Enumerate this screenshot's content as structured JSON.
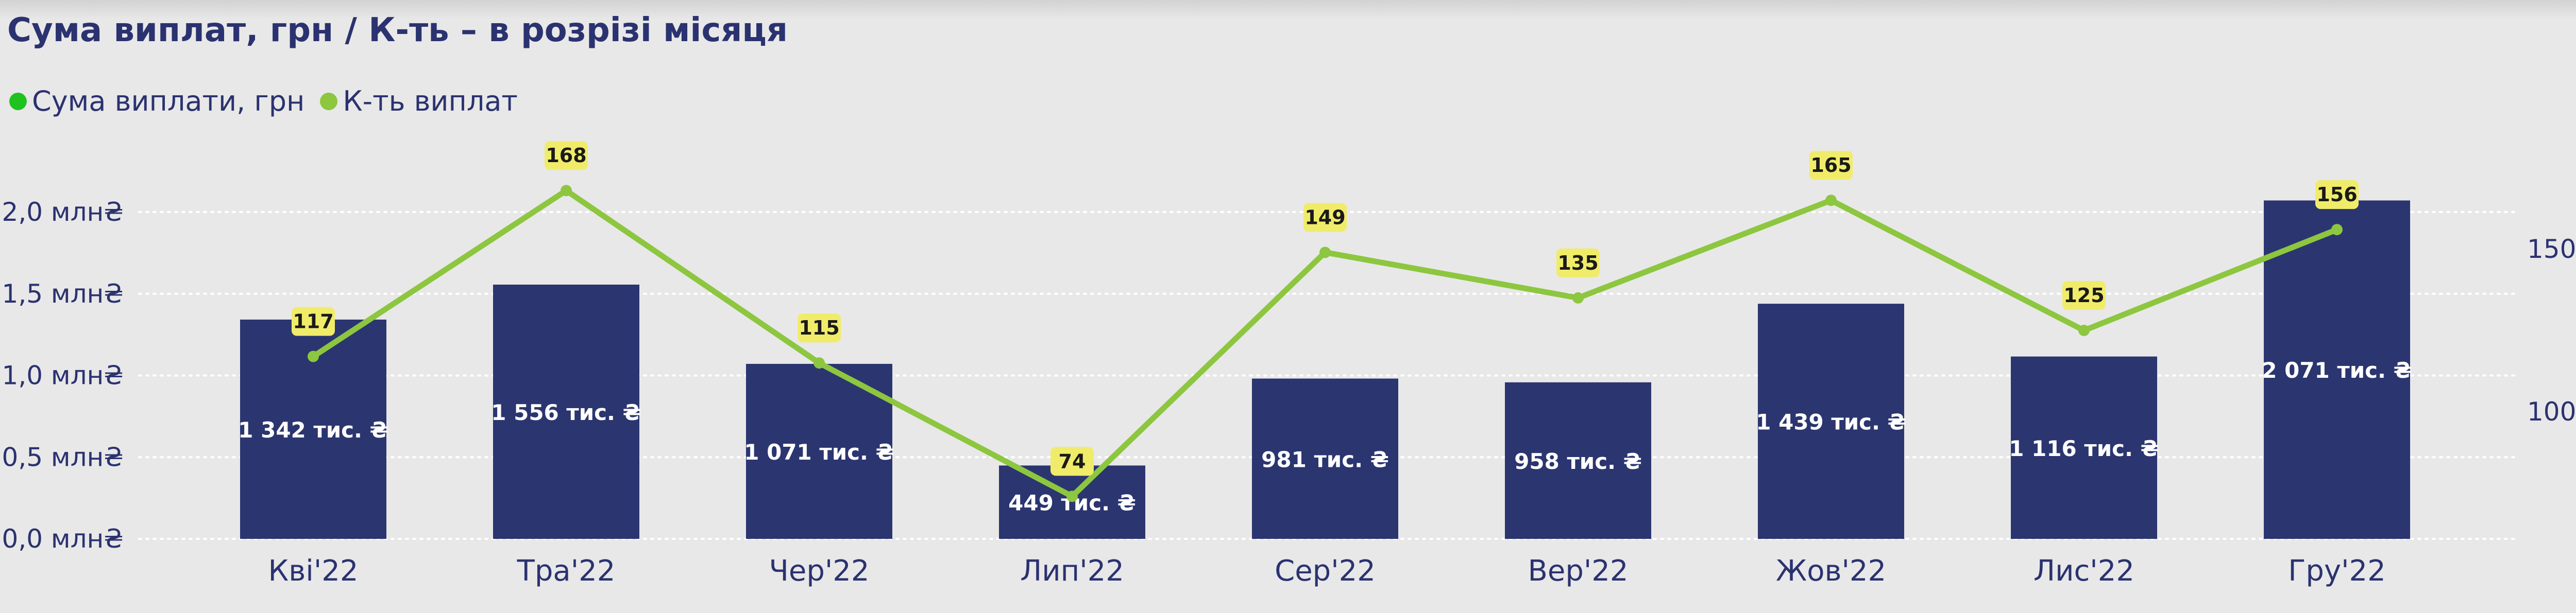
{
  "chart_data": {
    "type": "bar",
    "title": "Сума виплат, грн / К-ть – в розрізі місяця",
    "categories": [
      "Кві'22",
      "Тра'22",
      "Чер'22",
      "Лип'22",
      "Сер'22",
      "Вер'22",
      "Жов'22",
      "Лис'22",
      "Гру'22"
    ],
    "series": [
      {
        "name": "Сума виплати, грн",
        "type": "bar",
        "axis": "left",
        "color": "#2b3570",
        "values": [
          1342,
          1556,
          1071,
          449,
          981,
          958,
          1439,
          1116,
          2071
        ],
        "labels": [
          "1 342 тис. ₴",
          "1 556 тис. ₴",
          "1 071 тис. ₴",
          "449 тис. ₴",
          "981 тис. ₴",
          "958 тис. ₴",
          "1 439 тис. ₴",
          "1 116 тис. ₴",
          "2 071 тис. ₴"
        ]
      },
      {
        "name": "К-ть виплат",
        "type": "line",
        "axis": "right",
        "color": "#8dc63f",
        "values": [
          117,
          168,
          115,
          74,
          149,
          135,
          165,
          125,
          156
        ]
      }
    ],
    "y_left": {
      "unit": "thousand UAH",
      "ylim": [
        0,
        2000
      ],
      "ticks": [
        0,
        500,
        1000,
        1500,
        2000
      ],
      "tick_labels": [
        "0,0 млн₴",
        "0,5 млн₴",
        "1,0 млн₴",
        "1,5 млн₴",
        "2,0 млн₴"
      ]
    },
    "y_right": {
      "ylim": [
        50,
        188
      ],
      "ticks": [
        100,
        150
      ],
      "tick_labels": [
        "100",
        "150"
      ]
    },
    "grid": true,
    "legend_position": "top-left",
    "line_label_bg": "#f0ec6a",
    "legend_dot_bar_color": "#1fc31f"
  }
}
